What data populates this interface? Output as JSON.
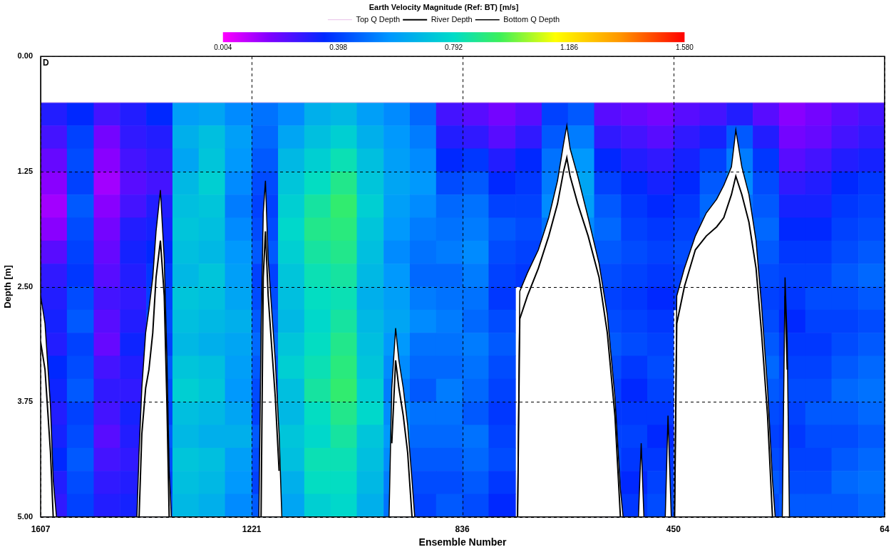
{
  "chart_data": {
    "type": "heatmap",
    "title": "Earth Velocity Magnitude (Ref: BT) [m/s]",
    "x_label": "Ensemble Number",
    "y_label": "Depth [m]",
    "annotation": "D",
    "xlim": [
      1607,
      64
    ],
    "xticks": [
      1607,
      1221,
      836,
      450,
      64
    ],
    "ylim": [
      5,
      0
    ],
    "yticks": [
      {
        "value": 0,
        "label": "0.00"
      },
      1.25,
      {
        "value": 2.5,
        "label": "2.50"
      },
      3.75,
      {
        "value": 5,
        "label": "5.00"
      }
    ],
    "grid": true,
    "legend": "top",
    "colorbar": {
      "range": [
        0.004,
        1.58
      ],
      "ticks": [
        0.004,
        0.398,
        0.792,
        1.186,
        {
          "value": 1.58,
          "label": "1.580"
        }
      ]
    },
    "cells": {
      "x_edges": [
        1607,
        1559,
        1510,
        1462,
        1414,
        1366,
        1318,
        1270,
        1221,
        1173,
        1125,
        1077,
        1029,
        980,
        932,
        884,
        836,
        788,
        739,
        691,
        643,
        595,
        546,
        498,
        450,
        402,
        353,
        305,
        257,
        209,
        161,
        112,
        64
      ],
      "depth_edges": [
        0.5,
        0.75,
        1,
        1.25,
        1.5,
        1.75,
        2,
        2.25,
        2.5,
        2.75,
        3,
        3.25,
        3.5,
        3.75,
        4,
        4.25,
        4.5,
        4.75,
        5
      ],
      "values": [
        [
          0.3,
          0.25,
          0.2,
          0.15,
          0.12,
          0.15,
          0.22,
          0.28,
          0.3,
          0.32,
          0.3,
          0.35,
          0.33,
          0.3,
          0.32,
          0.35,
          0.3,
          0.28
        ],
        [
          0.35,
          0.4,
          0.42,
          0.4,
          0.45,
          0.42,
          0.4,
          0.38,
          0.42,
          0.45,
          0.4,
          0.42,
          0.45,
          0.4,
          0.42,
          0.45,
          0.42,
          0.4
        ],
        [
          0.25,
          0.18,
          0.15,
          0.12,
          0.15,
          0.18,
          0.2,
          0.22,
          0.25,
          0.22,
          0.2,
          0.25,
          0.28,
          0.25,
          0.22,
          0.25,
          0.28,
          0.3
        ],
        [
          0.3,
          0.28,
          0.25,
          0.22,
          0.25,
          0.3,
          0.32,
          0.3,
          0.28,
          0.3,
          0.33,
          0.3,
          0.28,
          0.32,
          0.3,
          0.28,
          0.3,
          0.32
        ],
        [
          0.35,
          0.3,
          0.28,
          0.25,
          0.3,
          0.32,
          0.35,
          0.38,
          0.4,
          0.42,
          0.4,
          0.45,
          0.42,
          0.4,
          0.45,
          0.42,
          0.4,
          0.42
        ],
        [
          0.6,
          0.65,
          0.62,
          0.68,
          0.7,
          0.72,
          0.7,
          0.68,
          0.72,
          0.7,
          0.68,
          0.72,
          0.75,
          0.7,
          0.68,
          0.72,
          0.7,
          0.68
        ],
        [
          0.62,
          0.7,
          0.72,
          0.75,
          0.72,
          0.7,
          0.68,
          0.72,
          0.7,
          0.68,
          0.65,
          0.7,
          0.72,
          0.68,
          0.65,
          0.7,
          0.68,
          0.65
        ],
        [
          0.55,
          0.6,
          0.58,
          0.55,
          0.52,
          0.55,
          0.58,
          0.6,
          0.62,
          0.65,
          0.62,
          0.6,
          0.58,
          0.62,
          0.65,
          0.6,
          0.58,
          0.55
        ],
        [
          0.5,
          0.48,
          0.45,
          0.42,
          0.4,
          0.42,
          0.45,
          0.4,
          0.42,
          0.45,
          0.48,
          0.45,
          0.42,
          0.4,
          0.45,
          0.42,
          0.4,
          0.45
        ],
        [
          0.55,
          0.62,
          0.68,
          0.72,
          0.75,
          0.78,
          0.75,
          0.72,
          0.7,
          0.68,
          0.72,
          0.75,
          0.7,
          0.68,
          0.72,
          0.7,
          0.65,
          0.62
        ],
        [
          0.65,
          0.7,
          0.75,
          0.8,
          0.85,
          0.88,
          0.85,
          0.82,
          0.8,
          0.78,
          0.8,
          0.82,
          0.85,
          0.8,
          0.78,
          0.82,
          0.8,
          0.75
        ],
        [
          0.68,
          0.75,
          0.82,
          0.88,
          0.92,
          0.9,
          0.88,
          0.85,
          0.82,
          0.85,
          0.88,
          0.9,
          0.92,
          0.88,
          0.85,
          0.82,
          0.8,
          0.78
        ],
        [
          0.6,
          0.65,
          0.7,
          0.72,
          0.75,
          0.72,
          0.7,
          0.68,
          0.65,
          0.68,
          0.7,
          0.72,
          0.75,
          0.78,
          0.72,
          0.7,
          0.68,
          0.65
        ],
        [
          0.55,
          0.58,
          0.6,
          0.62,
          0.6,
          0.58,
          0.55,
          0.58,
          0.6,
          0.62,
          0.58,
          0.55,
          0.52,
          0.55,
          0.58,
          0.55,
          0.52,
          0.5
        ],
        [
          0.48,
          0.52,
          0.55,
          0.58,
          0.55,
          0.52,
          0.5,
          0.48,
          0.52,
          0.55,
          0.5,
          0.48,
          0.45,
          0.5,
          0.48,
          0.45,
          0.42,
          0.4
        ],
        [
          0.25,
          0.3,
          0.35,
          0.42,
          0.48,
          0.5,
          0.52,
          0.48,
          0.5,
          0.52,
          0.5,
          0.48,
          0.52,
          0.5,
          0.48,
          0.45,
          0.42,
          0.45
        ],
        [
          0.22,
          0.28,
          0.38,
          0.45,
          0.5,
          0.52,
          0.55,
          0.52,
          0.5,
          0.48,
          0.52,
          0.5,
          0.48,
          0.45,
          0.5,
          0.48,
          0.45,
          0.42
        ],
        [
          0.18,
          0.22,
          0.3,
          0.35,
          0.4,
          0.45,
          0.42,
          0.4,
          0.38,
          0.42,
          0.45,
          0.42,
          0.4,
          0.38,
          0.4,
          0.42,
          0.38,
          0.35
        ],
        [
          0.22,
          0.28,
          0.35,
          0.38,
          0.4,
          0.42,
          0.4,
          0.38,
          null,
          null,
          null,
          null,
          null,
          null,
          null,
          null,
          null,
          null
        ],
        [
          0.4,
          0.45,
          0.5,
          0.52,
          0.55,
          0.5,
          null,
          null,
          null,
          null,
          null,
          null,
          null,
          null,
          null,
          null,
          null,
          null
        ],
        [
          0.45,
          0.52,
          0.58,
          0.62,
          0.6,
          0.55,
          0.5,
          null,
          null,
          null,
          null,
          null,
          null,
          null,
          null,
          null,
          null,
          null
        ],
        [
          0.22,
          0.28,
          0.35,
          0.4,
          0.45,
          0.48,
          0.45,
          0.42,
          0.4,
          0.42,
          0.45,
          0.42,
          0.4,
          0.38,
          0.4,
          0.42,
          0.4,
          0.38
        ],
        [
          0.2,
          0.25,
          0.3,
          0.35,
          0.38,
          0.4,
          0.42,
          0.4,
          0.38,
          0.4,
          0.42,
          0.38,
          0.35,
          0.38,
          0.4,
          0.38,
          0.35,
          0.38
        ],
        [
          0.18,
          0.22,
          0.28,
          0.32,
          0.35,
          0.38,
          0.4,
          0.38,
          0.35,
          0.38,
          0.4,
          0.42,
          0.4,
          0.38,
          0.35,
          0.38,
          0.4,
          0.42
        ],
        [
          0.22,
          0.28,
          0.32,
          0.35,
          0.38,
          0.4,
          0.42,
          0.4,
          0.38,
          null,
          null,
          null,
          null,
          null,
          null,
          null,
          null,
          null
        ],
        [
          0.25,
          0.32,
          0.4,
          0.45,
          0.48,
          0.45,
          null,
          null,
          null,
          null,
          null,
          null,
          null,
          null,
          null,
          null,
          null,
          null
        ],
        [
          0.3,
          0.45,
          0.52,
          0.55,
          0.5,
          0.45,
          null,
          null,
          null,
          null,
          null,
          null,
          null,
          null,
          null,
          null,
          null,
          null
        ],
        [
          0.22,
          0.3,
          0.38,
          0.42,
          0.45,
          0.48,
          0.45,
          0.42,
          0.4,
          0.42,
          0.45,
          0.48,
          0.45,
          0.42,
          0.4,
          0.42,
          0.45,
          0.42
        ],
        [
          0.15,
          0.18,
          0.22,
          0.28,
          0.32,
          0.35,
          0.38,
          0.4,
          0.38,
          0.35,
          0.38,
          0.4,
          0.42,
          0.4,
          0.38,
          0.4,
          0.42,
          0.45
        ],
        [
          0.18,
          0.2,
          0.25,
          0.3,
          0.32,
          0.35,
          0.38,
          0.4,
          0.42,
          0.4,
          0.38,
          0.4,
          0.42,
          0.45,
          0.42,
          0.4,
          0.42,
          0.45
        ],
        [
          0.22,
          0.25,
          0.3,
          0.35,
          0.38,
          0.4,
          0.42,
          0.45,
          0.42,
          0.4,
          0.42,
          0.45,
          0.48,
          0.45,
          0.42,
          0.45,
          0.48,
          0.45
        ],
        [
          0.25,
          0.28,
          0.32,
          0.38,
          0.4,
          0.42,
          0.45,
          0.48,
          0.45,
          0.42,
          0.45,
          0.48,
          0.5,
          0.48,
          0.45,
          0.48,
          0.5,
          0.48
        ]
      ]
    },
    "series": [
      {
        "name": "River Depth",
        "color": "#000000",
        "x": [
          1607,
          1599,
          1589,
          1584,
          1578,
          1500,
          1431,
          1427,
          1422,
          1415,
          1409,
          1402,
          1396,
          1388,
          1381,
          1376,
          1372,
          1368,
          1300,
          1208,
          1204,
          1200,
          1196,
          1191,
          1184,
          1178,
          1171,
          1166,
          1050,
          970,
          965,
          958,
          952,
          944,
          936,
          928,
          923,
          800,
          735,
          731,
          717,
          697,
          678,
          662,
          651,
          645,
          639,
          625,
          606,
          586,
          571,
          557,
          547,
          542,
          530,
          514,
          509,
          504,
          490,
          465,
          460,
          454,
          451,
          448,
          444,
          430,
          410,
          390,
          371,
          358,
          344,
          336,
          325,
          312,
          299,
          289,
          278,
          269,
          264,
          258,
          251,
          246,
          242,
          238
        ],
        "values": [
          3.1,
          3.4,
          4.3,
          5.0,
          null,
          null,
          null,
          5.0,
          4.1,
          3.6,
          3.4,
          3.0,
          2.4,
          2.0,
          2.6,
          3.8,
          5.0,
          null,
          null,
          null,
          5.0,
          2.4,
          1.9,
          2.6,
          3.2,
          3.7,
          4.5,
          null,
          null,
          null,
          4.2,
          3.3,
          3.6,
          3.9,
          4.3,
          5.0,
          null,
          null,
          5.0,
          2.85,
          2.6,
          2.3,
          1.95,
          1.6,
          1.25,
          1.1,
          1.3,
          1.6,
          1.95,
          2.4,
          3.0,
          3.9,
          5.0,
          null,
          null,
          null,
          4.6,
          null,
          null,
          null,
          4.3,
          null,
          null,
          5.0,
          2.9,
          2.5,
          2.1,
          1.95,
          1.85,
          1.75,
          1.5,
          1.3,
          1.5,
          1.8,
          2.3,
          3.0,
          3.9,
          5.0,
          null,
          null,
          null,
          2.6,
          3.4,
          null
        ]
      },
      {
        "name": "Top Q Depth",
        "color": "#e8bfe8",
        "x": [
          1607,
          64
        ],
        "values": [
          0.5,
          0.5
        ]
      },
      {
        "name": "Bottom Q Depth",
        "color": "#000000",
        "x": [
          1607,
          1599,
          1589,
          1584,
          1578,
          1500,
          1431,
          1427,
          1422,
          1415,
          1409,
          1402,
          1396,
          1388,
          1381,
          1376,
          1372,
          1368,
          1300,
          1208,
          1204,
          1200,
          1196,
          1191,
          1184,
          1178,
          1171,
          1166,
          1050,
          970,
          965,
          958,
          952,
          944,
          936,
          928,
          923,
          800,
          735,
          731,
          717,
          697,
          678,
          662,
          651,
          645,
          639,
          625,
          606,
          586,
          571,
          557,
          547,
          542,
          530,
          514,
          509,
          504,
          490,
          465,
          460,
          454,
          451,
          448,
          444,
          430,
          410,
          390,
          371,
          358,
          344,
          336,
          325,
          312,
          299,
          289,
          278,
          269,
          264,
          258,
          251,
          246,
          242,
          238
        ],
        "values": [
          2.6,
          2.9,
          3.8,
          4.6,
          5.0,
          null,
          5.0,
          4.3,
          3.6,
          3.0,
          2.75,
          2.4,
          1.9,
          1.45,
          2.2,
          3.3,
          4.5,
          5.0,
          null,
          5.0,
          3.0,
          1.7,
          1.35,
          2.2,
          2.8,
          3.3,
          4.1,
          5.0,
          null,
          5.0,
          3.6,
          2.95,
          3.3,
          3.6,
          4.0,
          4.6,
          5.0,
          null,
          5.0,
          2.55,
          2.35,
          2.1,
          1.75,
          1.35,
          0.95,
          0.75,
          1.0,
          1.3,
          1.75,
          2.25,
          2.8,
          3.7,
          4.7,
          5.0,
          null,
          5.0,
          4.2,
          5.0,
          null,
          5.0,
          3.9,
          5.0,
          null,
          5.0,
          2.6,
          2.3,
          1.95,
          1.7,
          1.55,
          1.4,
          1.2,
          0.8,
          1.2,
          1.5,
          2.0,
          2.7,
          3.6,
          4.6,
          5.0,
          null,
          5.0,
          2.4,
          3.1,
          5.0
        ]
      }
    ]
  }
}
